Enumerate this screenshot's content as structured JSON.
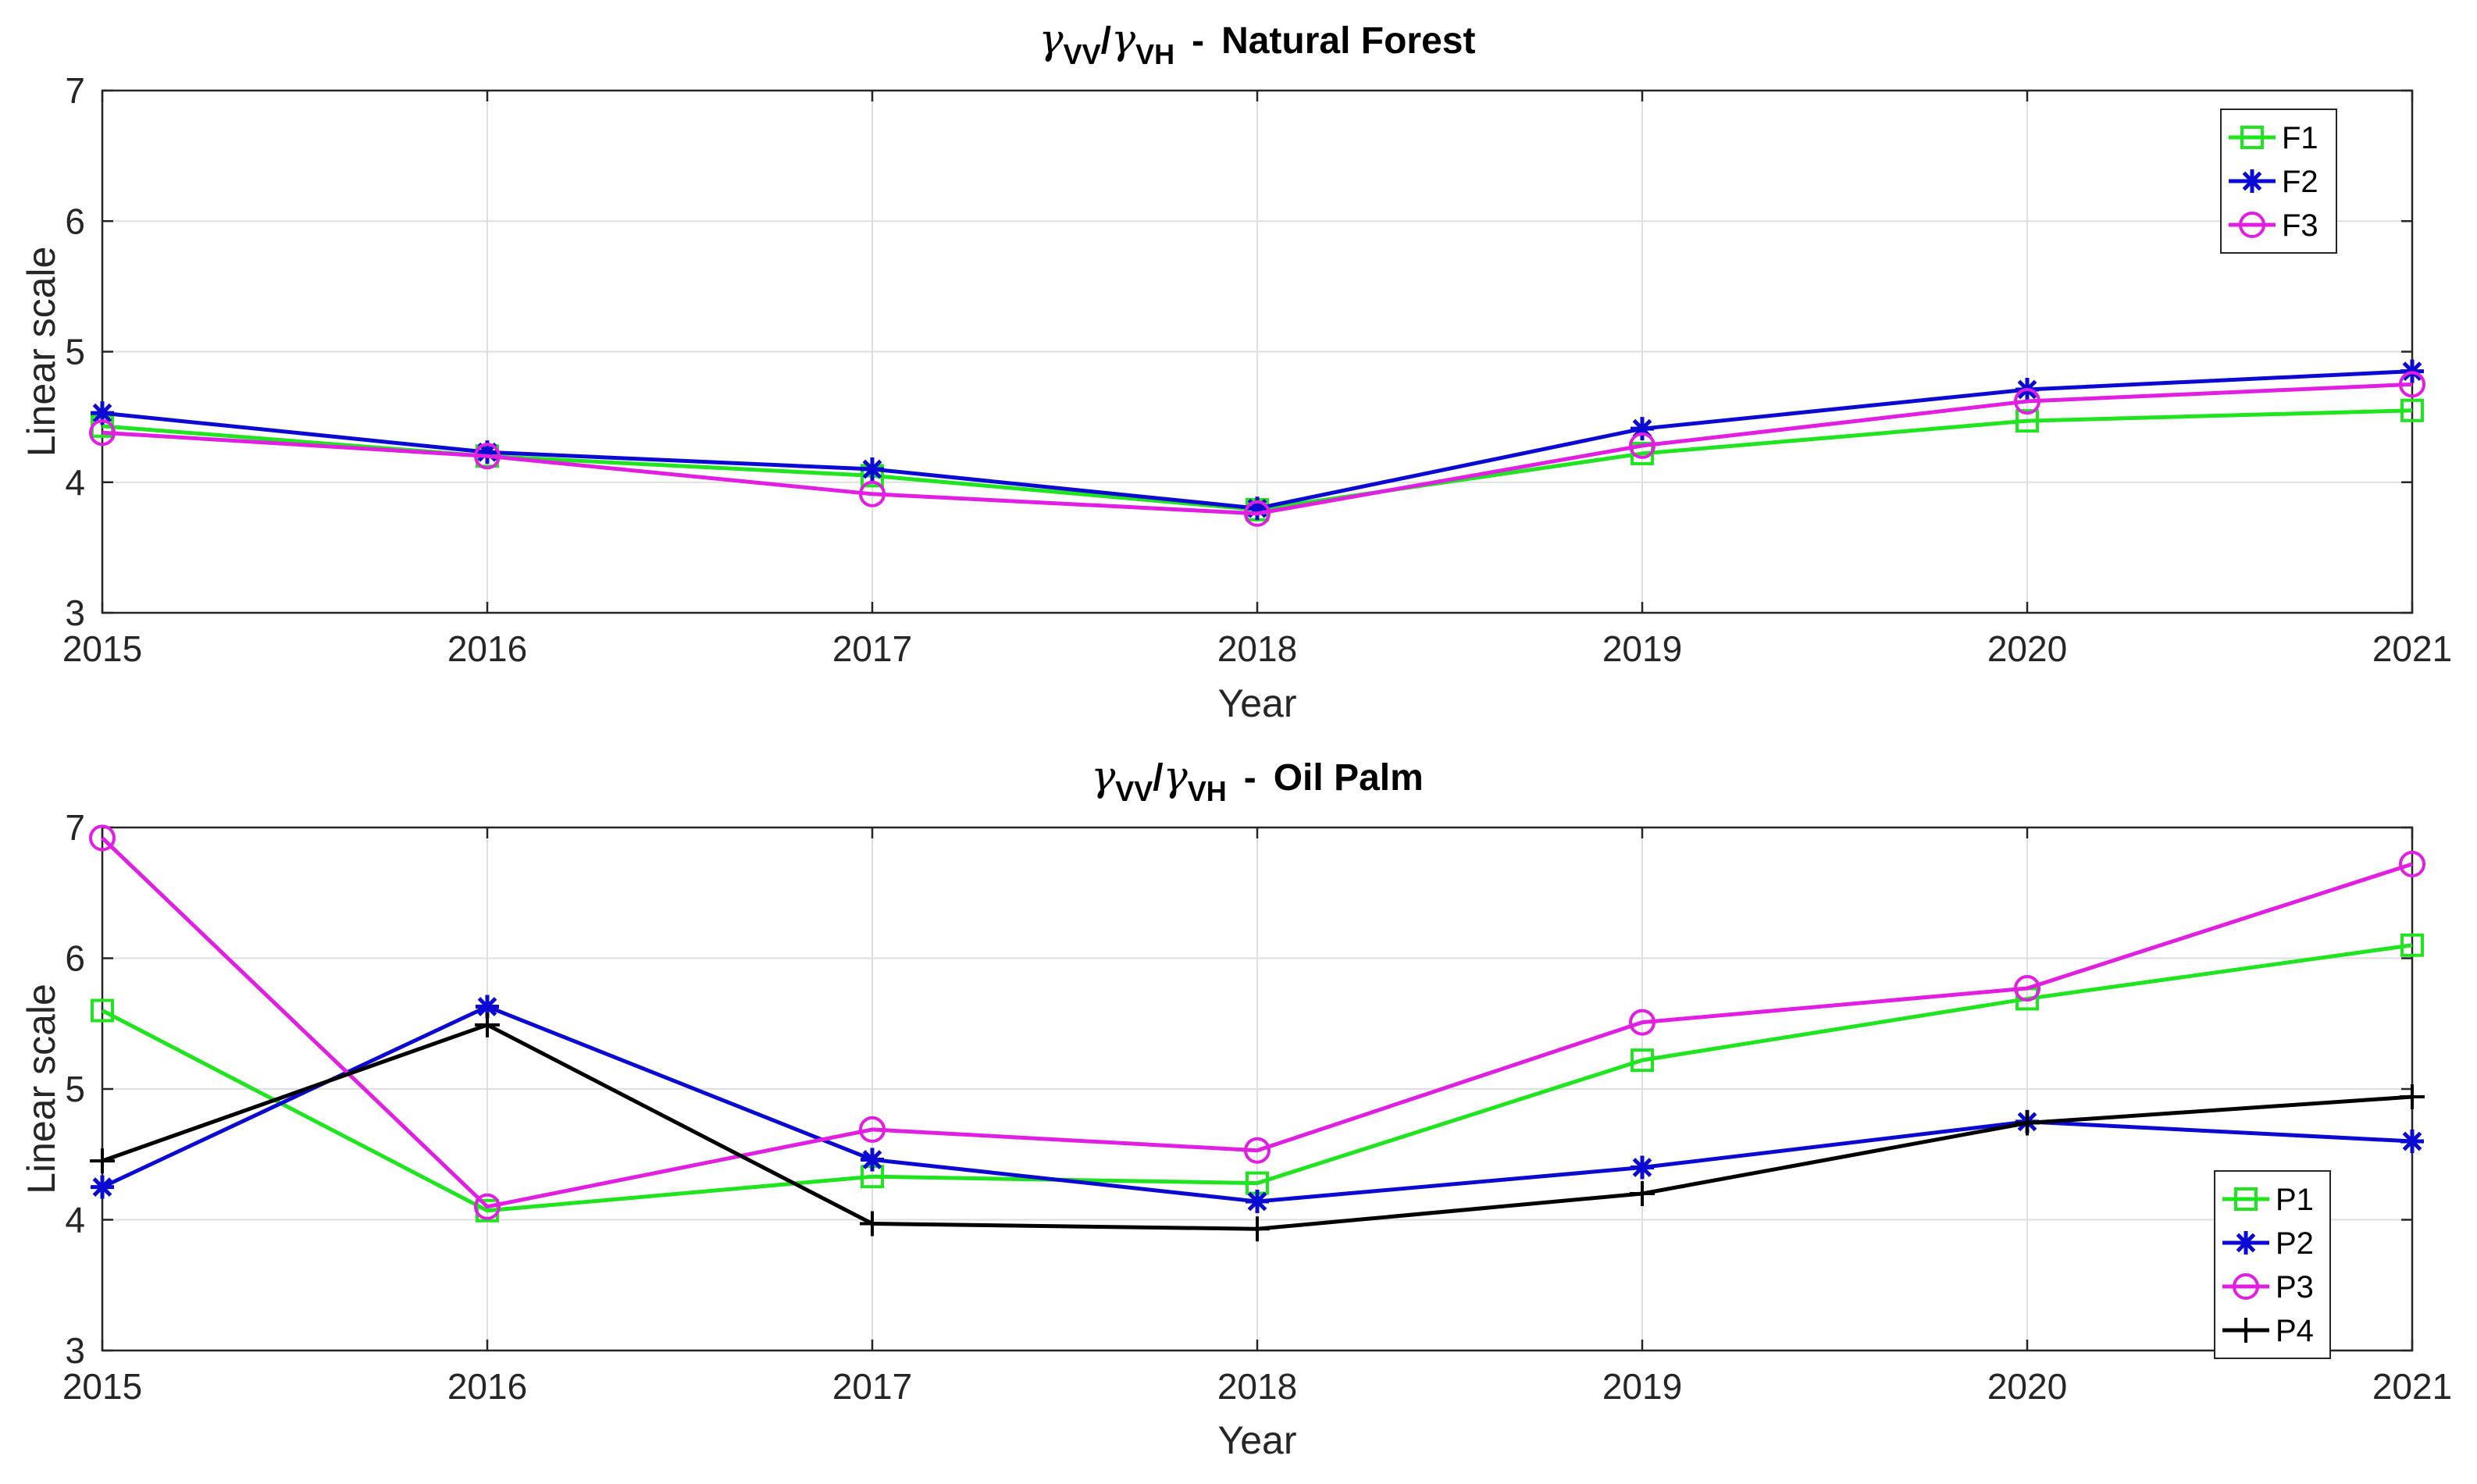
{
  "chart_data": [
    {
      "type": "line",
      "title": {
        "symbol": "γ",
        "num_sub": "VV",
        "den_sub": "VH",
        "separator": "-",
        "name": "Natural Forest"
      },
      "xlabel": "Year",
      "ylabel": "Linear scale",
      "x": [
        2015,
        2016,
        2017,
        2018,
        2019,
        2020,
        2021
      ],
      "xlim": [
        2015,
        2021
      ],
      "ylim": [
        3,
        7
      ],
      "xticks": [
        "2015",
        "2016",
        "2017",
        "2018",
        "2019",
        "2020",
        "2021"
      ],
      "yticks": [
        "3",
        "4",
        "5",
        "6",
        "7"
      ],
      "grid": true,
      "legend_position": "top-right",
      "series": [
        {
          "name": "F1",
          "color": "#1ee51e",
          "marker": "square",
          "values": [
            4.43,
            4.2,
            4.05,
            3.79,
            4.22,
            4.47,
            4.55
          ]
        },
        {
          "name": "F2",
          "color": "#0a0ad2",
          "marker": "asterisk",
          "values": [
            4.53,
            4.23,
            4.1,
            3.8,
            4.41,
            4.71,
            4.85
          ]
        },
        {
          "name": "F3",
          "color": "#e11ee1",
          "marker": "circle",
          "values": [
            4.38,
            4.2,
            3.91,
            3.76,
            4.28,
            4.62,
            4.75
          ]
        }
      ]
    },
    {
      "type": "line",
      "title": {
        "symbol": "γ",
        "num_sub": "VV",
        "den_sub": "VH",
        "separator": "-",
        "name": "Oil Palm"
      },
      "xlabel": "Year",
      "ylabel": "Linear scale",
      "x": [
        2015,
        2016,
        2017,
        2018,
        2019,
        2020,
        2021
      ],
      "xlim": [
        2015,
        2021
      ],
      "ylim": [
        3,
        7
      ],
      "xticks": [
        "2015",
        "2016",
        "2017",
        "2018",
        "2019",
        "2020",
        "2021"
      ],
      "yticks": [
        "3",
        "4",
        "5",
        "6",
        "7"
      ],
      "grid": true,
      "legend_position": "bottom-right",
      "series": [
        {
          "name": "P1",
          "color": "#1ee51e",
          "marker": "square",
          "values": [
            5.6,
            4.07,
            4.33,
            4.28,
            5.22,
            5.69,
            6.1
          ]
        },
        {
          "name": "P2",
          "color": "#0a0ad2",
          "marker": "asterisk",
          "values": [
            4.25,
            5.63,
            4.46,
            4.14,
            4.4,
            4.75,
            4.6
          ]
        },
        {
          "name": "P3",
          "color": "#e11ee1",
          "marker": "circle",
          "values": [
            6.92,
            4.1,
            4.69,
            4.53,
            5.51,
            5.77,
            6.72
          ]
        },
        {
          "name": "P4",
          "color": "#000000",
          "marker": "plus",
          "values": [
            4.45,
            5.49,
            3.97,
            3.93,
            4.2,
            4.74,
            4.94
          ]
        }
      ]
    }
  ]
}
